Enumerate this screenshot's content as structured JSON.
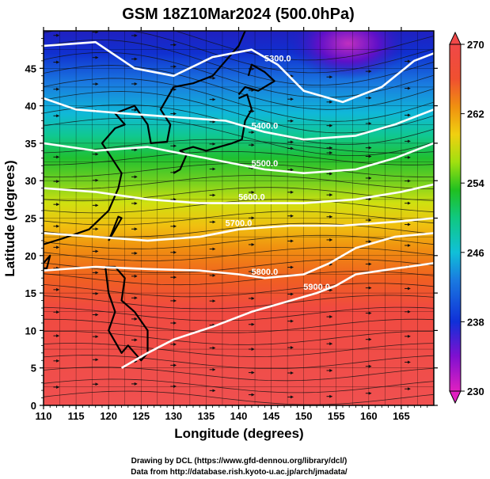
{
  "chart_data": {
    "type": "heatmap",
    "title": "GSM 18Z10Mar2024 (500.0hPa)",
    "xlabel": "Longitude (degrees)",
    "ylabel": "Latitude  (degrees)",
    "xlim": [
      110,
      170
    ],
    "ylim": [
      0,
      50
    ],
    "x_ticks": [
      110,
      115,
      120,
      125,
      130,
      135,
      140,
      145,
      150,
      155,
      160,
      165
    ],
    "y_ticks": [
      0,
      5,
      10,
      15,
      20,
      25,
      30,
      35,
      40,
      45
    ],
    "colorbar": {
      "min": 230,
      "max": 270,
      "tick_values": [
        230,
        238,
        246,
        254,
        262,
        270
      ],
      "colors": [
        "#e020c0",
        "#7010d0",
        "#1030d8",
        "#1a7ae0",
        "#10b8d8",
        "#10c890",
        "#20c020",
        "#a0e010",
        "#f0d010",
        "#f09010",
        "#f05030",
        "#f04848"
      ]
    },
    "contours": [
      {
        "label": "5300.0",
        "value": 5300,
        "points": [
          [
            110,
            48
          ],
          [
            118,
            48.5
          ],
          [
            124,
            45
          ],
          [
            130,
            44
          ],
          [
            136,
            46.5
          ],
          [
            142,
            47.5
          ],
          [
            146,
            45.5
          ],
          [
            150,
            42
          ],
          [
            156,
            40.5
          ],
          [
            162,
            42.5
          ],
          [
            167,
            46
          ],
          [
            170,
            47
          ]
        ]
      },
      {
        "label": "5400.0",
        "value": 5400,
        "points": [
          [
            110,
            41
          ],
          [
            115,
            39.5
          ],
          [
            122,
            39
          ],
          [
            130,
            38.5
          ],
          [
            138,
            38
          ],
          [
            144,
            36.5
          ],
          [
            150,
            35.5
          ],
          [
            158,
            36
          ],
          [
            164,
            37.5
          ],
          [
            170,
            39.5
          ]
        ]
      },
      {
        "label": "5500.0",
        "value": 5500,
        "points": [
          [
            110,
            35
          ],
          [
            118,
            34
          ],
          [
            126,
            34.5
          ],
          [
            132,
            33.5
          ],
          [
            138,
            32.5
          ],
          [
            144,
            31.5
          ],
          [
            150,
            31
          ],
          [
            158,
            31.5
          ],
          [
            164,
            33
          ],
          [
            170,
            35
          ]
        ]
      },
      {
        "label": "5600.0",
        "value": 5600,
        "points": [
          [
            110,
            29
          ],
          [
            118,
            28.5
          ],
          [
            126,
            27.5
          ],
          [
            134,
            27
          ],
          [
            142,
            27
          ],
          [
            150,
            27
          ],
          [
            158,
            27.5
          ],
          [
            165,
            28.5
          ],
          [
            170,
            29.5
          ]
        ]
      },
      {
        "label": "5700.0",
        "value": 5700,
        "points": [
          [
            110,
            23
          ],
          [
            118,
            22.5
          ],
          [
            126,
            22
          ],
          [
            134,
            22.5
          ],
          [
            140,
            23.5
          ],
          [
            148,
            24
          ],
          [
            156,
            24
          ],
          [
            164,
            24.5
          ],
          [
            170,
            25
          ]
        ]
      },
      {
        "label": "5800.0",
        "value": 5800,
        "points": [
          [
            110,
            18
          ],
          [
            118,
            18.5
          ],
          [
            126,
            18.2
          ],
          [
            134,
            18
          ],
          [
            140,
            17.5
          ],
          [
            144,
            17
          ],
          [
            150,
            17.5
          ],
          [
            154,
            19
          ],
          [
            158,
            21
          ],
          [
            164,
            22.5
          ],
          [
            170,
            23
          ]
        ]
      },
      {
        "label": "5900.0",
        "value": 5900,
        "points": [
          [
            122,
            5
          ],
          [
            126,
            7
          ],
          [
            130,
            8.8
          ],
          [
            136,
            10.5
          ],
          [
            142,
            12.5
          ],
          [
            148,
            14
          ],
          [
            152,
            15
          ],
          [
            155,
            16
          ],
          [
            158,
            17.5
          ],
          [
            162,
            18
          ],
          [
            166,
            18.5
          ],
          [
            170,
            19
          ]
        ]
      }
    ],
    "credits": [
      "Drawing by DCL (https://www.gfd-dennou.org/library/dcl/)",
      "Data from http://database.rish.kyoto-u.ac.jp/arch/jmadata/"
    ]
  }
}
